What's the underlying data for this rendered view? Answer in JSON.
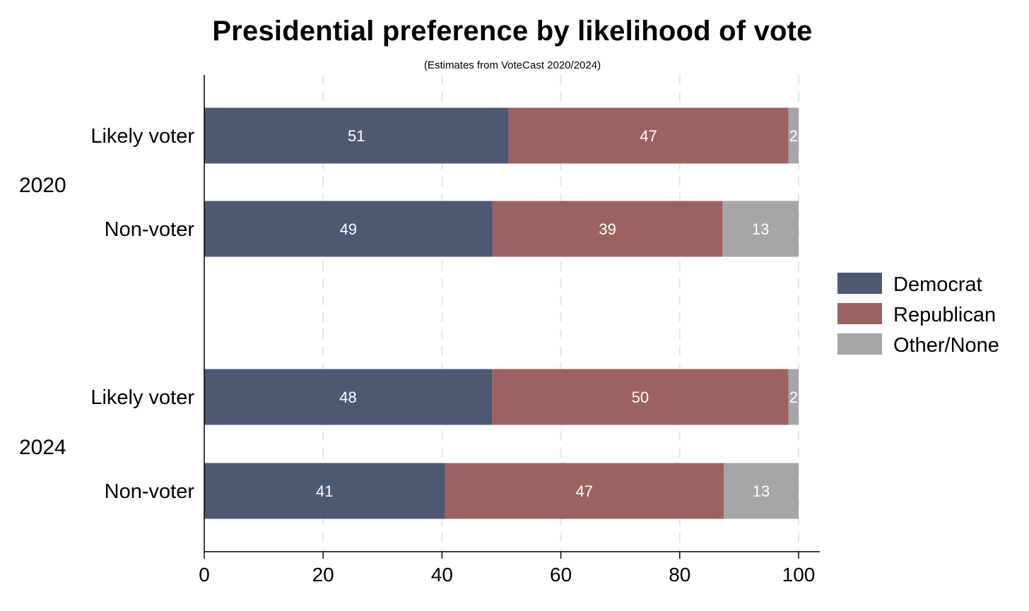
{
  "chart_data": {
    "type": "bar",
    "orientation": "horizontal",
    "stacked": true,
    "title": "Presidential preference by likelihood of vote",
    "subtitle": "(Estimates from VoteCast 2020/2024)",
    "xlim": [
      0,
      100
    ],
    "xticks": [
      0,
      20,
      40,
      60,
      80,
      100
    ],
    "grid": true,
    "legend_position": "right",
    "groups": [
      {
        "label": "2020",
        "rows": [
          {
            "label": "Likely voter",
            "values": [
              51.2,
              47.1,
              1.7
            ],
            "labels": [
              "51",
              "47",
              "2"
            ]
          },
          {
            "label": "Non-voter",
            "values": [
              48.5,
              38.7,
              12.8
            ],
            "labels": [
              "49",
              "39",
              "13"
            ]
          }
        ]
      },
      {
        "label": "2024",
        "rows": [
          {
            "label": "Likely voter",
            "values": [
              48.4,
              49.9,
              1.7
            ],
            "labels": [
              "48",
              "50",
              "2"
            ]
          },
          {
            "label": "Non-voter",
            "values": [
              40.5,
              46.9,
              12.6
            ],
            "labels": [
              "41",
              "47",
              "13"
            ]
          }
        ]
      }
    ],
    "series": [
      {
        "name": "Democrat",
        "color": "#4e5873"
      },
      {
        "name": "Republican",
        "color": "#9c6262"
      },
      {
        "name": "Other/None",
        "color": "#a6a6a6"
      }
    ]
  }
}
